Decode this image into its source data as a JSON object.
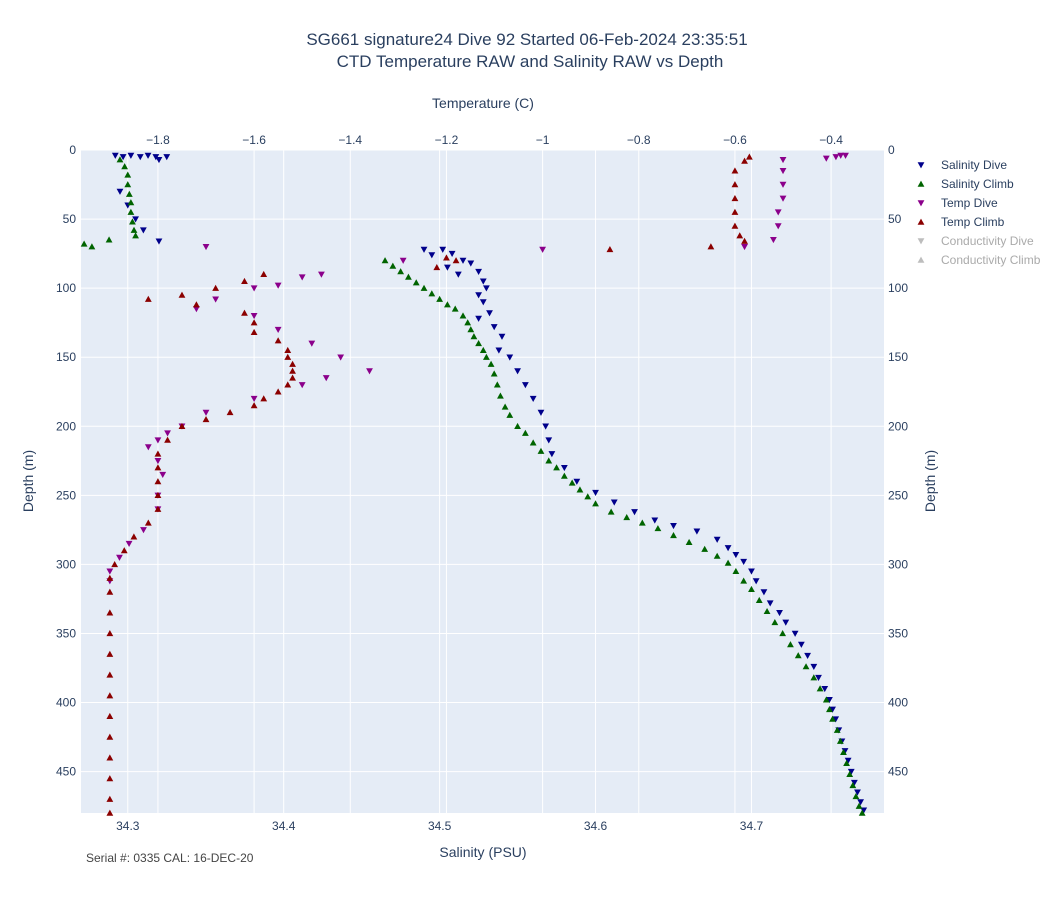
{
  "chart_data": {
    "type": "scatter",
    "title": "SG661 signature24 Dive 92 Started 06-Feb-2024 23:35:51",
    "subtitle": "CTD Temperature RAW and Salinity RAW vs Depth",
    "x_bottom_label": "Salinity (PSU)",
    "x_top_label": "Temperature (C)",
    "y_label_left": "Depth (m)",
    "y_label_right": "Depth (m)",
    "x_bottom_range": [
      34.27,
      34.785
    ],
    "x_top_range": [
      -1.96,
      -0.29
    ],
    "y_range": [
      0,
      480
    ],
    "y_reversed": true,
    "grid": true,
    "legend_placement": "top-right, outside plot",
    "x_bottom_ticks": [
      {
        "value": 34.3,
        "label": "34.3"
      },
      {
        "value": 34.4,
        "label": "34.4"
      },
      {
        "value": 34.5,
        "label": "34.5"
      },
      {
        "value": 34.6,
        "label": "34.6"
      },
      {
        "value": 34.7,
        "label": "34.7"
      }
    ],
    "x_top_ticks": [
      {
        "value": -1.8,
        "label": "−1.8"
      },
      {
        "value": -1.6,
        "label": "−1.6"
      },
      {
        "value": -1.4,
        "label": "−1.4"
      },
      {
        "value": -1.2,
        "label": "−1.2"
      },
      {
        "value": -1.0,
        "label": "−1"
      },
      {
        "value": -0.8,
        "label": "−0.8"
      },
      {
        "value": -0.6,
        "label": "−0.6"
      },
      {
        "value": -0.4,
        "label": "−0.4"
      }
    ],
    "y_ticks": [
      {
        "value": 0,
        "label": "0"
      },
      {
        "value": 50,
        "label": "50"
      },
      {
        "value": 100,
        "label": "100"
      },
      {
        "value": 150,
        "label": "150"
      },
      {
        "value": 200,
        "label": "200"
      },
      {
        "value": 250,
        "label": "250"
      },
      {
        "value": 300,
        "label": "300"
      },
      {
        "value": 350,
        "label": "350"
      },
      {
        "value": 400,
        "label": "400"
      },
      {
        "value": 450,
        "label": "450"
      }
    ],
    "series": [
      {
        "name": "Salinity Dive",
        "axis": "salinity",
        "marker": "triangle-down",
        "color": "#00008b",
        "visible": true,
        "points": [
          [
            34.292,
            4
          ],
          [
            34.297,
            5
          ],
          [
            34.302,
            4
          ],
          [
            34.308,
            5
          ],
          [
            34.313,
            4
          ],
          [
            34.318,
            5
          ],
          [
            34.32,
            7
          ],
          [
            34.325,
            5
          ],
          [
            34.295,
            30
          ],
          [
            34.3,
            40
          ],
          [
            34.305,
            50
          ],
          [
            34.31,
            58
          ],
          [
            34.32,
            66
          ],
          [
            34.49,
            72
          ],
          [
            34.495,
            76
          ],
          [
            34.502,
            72
          ],
          [
            34.508,
            75
          ],
          [
            34.515,
            80
          ],
          [
            34.505,
            85
          ],
          [
            34.512,
            90
          ],
          [
            34.52,
            82
          ],
          [
            34.525,
            88
          ],
          [
            34.528,
            95
          ],
          [
            34.53,
            100
          ],
          [
            34.525,
            105
          ],
          [
            34.528,
            110
          ],
          [
            34.532,
            118
          ],
          [
            34.525,
            122
          ],
          [
            34.535,
            128
          ],
          [
            34.54,
            135
          ],
          [
            34.538,
            145
          ],
          [
            34.545,
            150
          ],
          [
            34.55,
            160
          ],
          [
            34.555,
            170
          ],
          [
            34.56,
            180
          ],
          [
            34.565,
            190
          ],
          [
            34.568,
            200
          ],
          [
            34.57,
            210
          ],
          [
            34.572,
            220
          ],
          [
            34.58,
            230
          ],
          [
            34.588,
            240
          ],
          [
            34.6,
            248
          ],
          [
            34.612,
            255
          ],
          [
            34.625,
            262
          ],
          [
            34.638,
            268
          ],
          [
            34.65,
            272
          ],
          [
            34.665,
            276
          ],
          [
            34.678,
            282
          ],
          [
            34.685,
            288
          ],
          [
            34.69,
            293
          ],
          [
            34.695,
            298
          ],
          [
            34.7,
            305
          ],
          [
            34.703,
            312
          ],
          [
            34.708,
            320
          ],
          [
            34.712,
            328
          ],
          [
            34.718,
            335
          ],
          [
            34.722,
            342
          ],
          [
            34.728,
            350
          ],
          [
            34.732,
            358
          ],
          [
            34.736,
            366
          ],
          [
            34.74,
            374
          ],
          [
            34.743,
            382
          ],
          [
            34.747,
            390
          ],
          [
            34.75,
            398
          ],
          [
            34.752,
            405
          ],
          [
            34.754,
            412
          ],
          [
            34.756,
            420
          ],
          [
            34.758,
            428
          ],
          [
            34.76,
            435
          ],
          [
            34.762,
            442
          ],
          [
            34.764,
            450
          ],
          [
            34.766,
            458
          ],
          [
            34.768,
            465
          ],
          [
            34.77,
            472
          ],
          [
            34.772,
            478
          ]
        ]
      },
      {
        "name": "Salinity Climb",
        "axis": "salinity",
        "marker": "triangle-up",
        "color": "#006400",
        "visible": true,
        "points": [
          [
            34.295,
            7
          ],
          [
            34.298,
            12
          ],
          [
            34.3,
            18
          ],
          [
            34.3,
            25
          ],
          [
            34.301,
            32
          ],
          [
            34.302,
            38
          ],
          [
            34.302,
            45
          ],
          [
            34.303,
            52
          ],
          [
            34.304,
            58
          ],
          [
            34.305,
            62
          ],
          [
            34.277,
            70
          ],
          [
            34.272,
            68
          ],
          [
            34.288,
            65
          ],
          [
            34.465,
            80
          ],
          [
            34.47,
            84
          ],
          [
            34.475,
            88
          ],
          [
            34.48,
            92
          ],
          [
            34.485,
            96
          ],
          [
            34.49,
            100
          ],
          [
            34.495,
            104
          ],
          [
            34.5,
            108
          ],
          [
            34.505,
            112
          ],
          [
            34.51,
            115
          ],
          [
            34.515,
            120
          ],
          [
            34.518,
            125
          ],
          [
            34.52,
            130
          ],
          [
            34.522,
            135
          ],
          [
            34.525,
            140
          ],
          [
            34.528,
            145
          ],
          [
            34.53,
            150
          ],
          [
            34.533,
            155
          ],
          [
            34.535,
            162
          ],
          [
            34.537,
            170
          ],
          [
            34.539,
            178
          ],
          [
            34.542,
            186
          ],
          [
            34.545,
            192
          ],
          [
            34.55,
            200
          ],
          [
            34.555,
            205
          ],
          [
            34.56,
            212
          ],
          [
            34.565,
            218
          ],
          [
            34.57,
            225
          ],
          [
            34.575,
            230
          ],
          [
            34.58,
            236
          ],
          [
            34.585,
            241
          ],
          [
            34.59,
            246
          ],
          [
            34.595,
            251
          ],
          [
            34.6,
            256
          ],
          [
            34.61,
            262
          ],
          [
            34.62,
            266
          ],
          [
            34.63,
            270
          ],
          [
            34.64,
            274
          ],
          [
            34.65,
            279
          ],
          [
            34.66,
            284
          ],
          [
            34.67,
            289
          ],
          [
            34.678,
            294
          ],
          [
            34.685,
            299
          ],
          [
            34.69,
            305
          ],
          [
            34.695,
            312
          ],
          [
            34.7,
            318
          ],
          [
            34.705,
            326
          ],
          [
            34.71,
            334
          ],
          [
            34.715,
            342
          ],
          [
            34.72,
            350
          ],
          [
            34.725,
            358
          ],
          [
            34.73,
            366
          ],
          [
            34.735,
            374
          ],
          [
            34.74,
            382
          ],
          [
            34.744,
            390
          ],
          [
            34.748,
            398
          ],
          [
            34.75,
            405
          ],
          [
            34.752,
            412
          ],
          [
            34.755,
            420
          ],
          [
            34.757,
            428
          ],
          [
            34.759,
            436
          ],
          [
            34.761,
            444
          ],
          [
            34.763,
            452
          ],
          [
            34.765,
            460
          ],
          [
            34.767,
            468
          ],
          [
            34.769,
            475
          ],
          [
            34.771,
            480
          ]
        ]
      },
      {
        "name": "Temp Dive",
        "axis": "temperature",
        "marker": "triangle-down",
        "color": "#8b008b",
        "visible": true,
        "points": [
          [
            -0.37,
            4
          ],
          [
            -0.38,
            4
          ],
          [
            -0.39,
            5
          ],
          [
            -0.41,
            6
          ],
          [
            -0.5,
            7
          ],
          [
            -0.5,
            15
          ],
          [
            -0.5,
            25
          ],
          [
            -0.5,
            35
          ],
          [
            -0.51,
            45
          ],
          [
            -0.51,
            55
          ],
          [
            -0.52,
            65
          ],
          [
            -0.58,
            70
          ],
          [
            -1.0,
            72
          ],
          [
            -1.7,
            70
          ],
          [
            -1.29,
            80
          ],
          [
            -1.46,
            90
          ],
          [
            -1.5,
            92
          ],
          [
            -1.55,
            98
          ],
          [
            -1.6,
            100
          ],
          [
            -1.68,
            108
          ],
          [
            -1.72,
            115
          ],
          [
            -1.6,
            120
          ],
          [
            -1.55,
            130
          ],
          [
            -1.48,
            140
          ],
          [
            -1.42,
            150
          ],
          [
            -1.36,
            160
          ],
          [
            -1.45,
            165
          ],
          [
            -1.5,
            170
          ],
          [
            -1.6,
            180
          ],
          [
            -1.7,
            190
          ],
          [
            -1.75,
            200
          ],
          [
            -1.78,
            205
          ],
          [
            -1.8,
            210
          ],
          [
            -1.82,
            215
          ],
          [
            -1.8,
            225
          ],
          [
            -1.79,
            235
          ],
          [
            -1.8,
            250
          ],
          [
            -1.8,
            260
          ],
          [
            -1.83,
            275
          ],
          [
            -1.86,
            285
          ],
          [
            -1.88,
            295
          ],
          [
            -1.9,
            305
          ],
          [
            -1.9,
            312
          ]
        ]
      },
      {
        "name": "Temp Climb",
        "axis": "temperature",
        "marker": "triangle-up",
        "color": "#8b0000",
        "visible": true,
        "points": [
          [
            -0.57,
            5
          ],
          [
            -0.58,
            8
          ],
          [
            -0.6,
            15
          ],
          [
            -0.6,
            25
          ],
          [
            -0.6,
            35
          ],
          [
            -0.6,
            45
          ],
          [
            -0.6,
            55
          ],
          [
            -0.59,
            62
          ],
          [
            -0.58,
            66
          ],
          [
            -0.65,
            70
          ],
          [
            -0.86,
            72
          ],
          [
            -1.2,
            78
          ],
          [
            -1.18,
            80
          ],
          [
            -1.22,
            85
          ],
          [
            -1.58,
            90
          ],
          [
            -1.62,
            95
          ],
          [
            -1.68,
            100
          ],
          [
            -1.75,
            105
          ],
          [
            -1.82,
            108
          ],
          [
            -1.72,
            112
          ],
          [
            -1.62,
            118
          ],
          [
            -1.6,
            125
          ],
          [
            -1.6,
            132
          ],
          [
            -1.55,
            138
          ],
          [
            -1.53,
            145
          ],
          [
            -1.53,
            150
          ],
          [
            -1.52,
            155
          ],
          [
            -1.52,
            160
          ],
          [
            -1.52,
            165
          ],
          [
            -1.53,
            170
          ],
          [
            -1.55,
            175
          ],
          [
            -1.58,
            180
          ],
          [
            -1.6,
            185
          ],
          [
            -1.65,
            190
          ],
          [
            -1.7,
            195
          ],
          [
            -1.75,
            200
          ],
          [
            -1.78,
            210
          ],
          [
            -1.8,
            220
          ],
          [
            -1.8,
            230
          ],
          [
            -1.8,
            240
          ],
          [
            -1.8,
            250
          ],
          [
            -1.8,
            260
          ],
          [
            -1.82,
            270
          ],
          [
            -1.85,
            280
          ],
          [
            -1.87,
            290
          ],
          [
            -1.89,
            300
          ],
          [
            -1.9,
            310
          ],
          [
            -1.9,
            320
          ],
          [
            -1.9,
            335
          ],
          [
            -1.9,
            350
          ],
          [
            -1.9,
            365
          ],
          [
            -1.9,
            380
          ],
          [
            -1.9,
            395
          ],
          [
            -1.9,
            410
          ],
          [
            -1.9,
            425
          ],
          [
            -1.9,
            440
          ],
          [
            -1.9,
            455
          ],
          [
            -1.9,
            470
          ],
          [
            -1.9,
            480
          ]
        ]
      },
      {
        "name": "Conductivity Dive",
        "marker": "triangle-down",
        "color": "#bdbdbd",
        "visible": false,
        "points": []
      },
      {
        "name": "Conductivity Climb",
        "marker": "triangle-up",
        "color": "#bdbdbd",
        "visible": false,
        "points": []
      }
    ]
  },
  "footer": {
    "note": "Serial #: 0335  CAL: 16-DEC-20"
  }
}
